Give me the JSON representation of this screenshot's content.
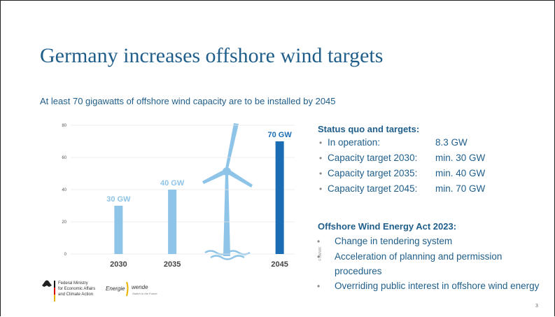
{
  "title": "Germany increases offshore wind targets",
  "subtitle": "At least 70 gigawatts of offshore wind capacity are to be installed by 2045",
  "chart_data": {
    "type": "bar",
    "categories": [
      "2030",
      "2035",
      null,
      "2045"
    ],
    "values": [
      30,
      40,
      null,
      70
    ],
    "value_labels": [
      "30 GW",
      "40 GW",
      null,
      "70 GW"
    ],
    "colors": [
      "#8ec4e8",
      "#8ec4e8",
      null,
      "#1a6db3"
    ],
    "ylim": [
      0,
      80
    ],
    "yticks": [
      0,
      20,
      40,
      60,
      80
    ],
    "grid": true
  },
  "copyright": "© BMWK",
  "status": {
    "heading": "Status quo and targets:",
    "items": [
      [
        "In operation:",
        "8.3 GW"
      ],
      [
        "Capacity target 2030:",
        "min. 30 GW"
      ],
      [
        "Capacity target 2035:",
        "min. 40 GW"
      ],
      [
        "Capacity target 2045:",
        "min. 70 GW"
      ]
    ]
  },
  "act": {
    "heading": "Offshore Wind Energy Act 2023:",
    "items": [
      "Change in tendering system",
      "Acceleration of planning and permission procedures",
      "Overriding public interest in offshore wind energy"
    ]
  },
  "footer": {
    "ministry": [
      "Federal Ministry",
      "for Economic Affairs",
      "and Climate Action"
    ],
    "brand_left": "Energie",
    "brand_right": "wende",
    "tagline": "Switch to the Future"
  },
  "page_number": "3"
}
